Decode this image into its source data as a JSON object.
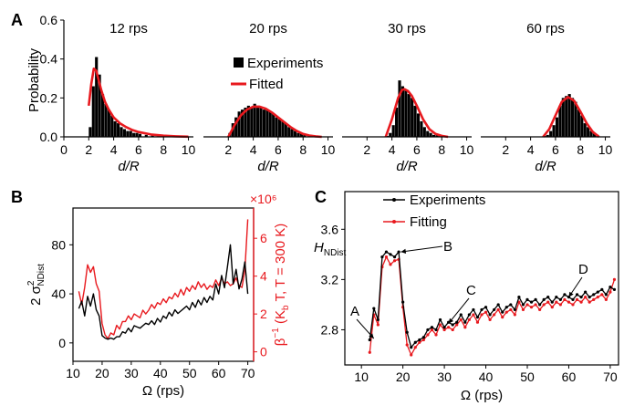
{
  "panel_labels": [
    "A",
    "B",
    "C"
  ],
  "colors": {
    "axis": "#000000",
    "experiment": "#000000",
    "fit": "#e8191e",
    "red_axis": "#e8191e"
  },
  "chart_data": [
    {
      "panel": "A",
      "type": "bar",
      "ylabel": "Probability",
      "ylim": [
        0,
        0.6
      ],
      "yticks": [
        "0.0",
        "0.2",
        "0.4",
        "0.6"
      ],
      "xlabel": "d/R",
      "xticks": [
        "0",
        "2",
        "4",
        "6",
        "8",
        "10"
      ],
      "xticks_other": [
        "2",
        "4",
        "6",
        "8",
        "10"
      ],
      "legend_labels": [
        "Experiments",
        "Fitted"
      ],
      "subplots": [
        {
          "title": "12 rps",
          "bins": [
            2.0,
            2.25,
            2.5,
            2.75,
            3.0,
            3.25,
            3.5,
            3.75,
            4.0,
            4.25,
            4.5,
            4.75,
            5.0,
            5.25,
            5.5,
            5.75,
            6.0,
            6.5,
            7.0,
            7.5,
            8.0,
            8.5,
            9.0
          ],
          "values": [
            0.05,
            0.26,
            0.41,
            0.32,
            0.22,
            0.17,
            0.14,
            0.11,
            0.08,
            0.07,
            0.05,
            0.04,
            0.03,
            0.03,
            0.02,
            0.02,
            0.015,
            0.01,
            0.01,
            0.005,
            0.005,
            0.005,
            0.003
          ],
          "fit_x": [
            2.0,
            2.2,
            2.4,
            2.6,
            2.8,
            3.0,
            3.3,
            3.6,
            4.0,
            4.5,
            5.0,
            5.5,
            6.0,
            7.0,
            8.0,
            9.0,
            10.0
          ],
          "fit_y": [
            0.16,
            0.27,
            0.35,
            0.34,
            0.29,
            0.24,
            0.18,
            0.14,
            0.1,
            0.07,
            0.05,
            0.035,
            0.025,
            0.012,
            0.006,
            0.003,
            0.001
          ]
        },
        {
          "title": "20 rps",
          "bins": [
            2.0,
            2.25,
            2.5,
            2.75,
            3.0,
            3.25,
            3.5,
            3.75,
            4.0,
            4.25,
            4.5,
            4.75,
            5.0,
            5.25,
            5.5,
            5.75,
            6.0,
            6.25,
            6.5,
            6.75,
            7.0,
            7.25,
            7.5,
            7.75,
            8.0,
            8.5,
            9.0
          ],
          "values": [
            0.02,
            0.07,
            0.1,
            0.13,
            0.14,
            0.15,
            0.16,
            0.15,
            0.17,
            0.16,
            0.15,
            0.14,
            0.14,
            0.13,
            0.12,
            0.1,
            0.09,
            0.08,
            0.07,
            0.05,
            0.04,
            0.03,
            0.02,
            0.02,
            0.01,
            0.01,
            0.005
          ],
          "fit_x": [
            2.0,
            2.5,
            3.0,
            3.5,
            4.0,
            4.5,
            5.0,
            5.5,
            6.0,
            6.5,
            7.0,
            7.5,
            8.0,
            8.5,
            9.0,
            9.5
          ],
          "fit_y": [
            0.0,
            0.06,
            0.11,
            0.14,
            0.155,
            0.155,
            0.145,
            0.125,
            0.1,
            0.075,
            0.05,
            0.03,
            0.015,
            0.007,
            0.003,
            0.0
          ]
        },
        {
          "title": "30 rps",
          "bins": [
            3.5,
            3.75,
            4.0,
            4.25,
            4.5,
            4.75,
            5.0,
            5.25,
            5.5,
            5.75,
            6.0,
            6.25,
            6.5,
            6.75,
            7.0,
            7.25,
            7.5,
            7.75,
            8.0
          ],
          "values": [
            0.005,
            0.02,
            0.06,
            0.15,
            0.29,
            0.26,
            0.24,
            0.22,
            0.2,
            0.16,
            0.12,
            0.08,
            0.05,
            0.03,
            0.02,
            0.01,
            0.008,
            0.005,
            0.003
          ],
          "fit_x": [
            3.5,
            4.0,
            4.5,
            4.8,
            5.0,
            5.3,
            5.6,
            6.0,
            6.5,
            7.0,
            7.5,
            8.0,
            8.5
          ],
          "fit_y": [
            0.0,
            0.09,
            0.2,
            0.24,
            0.245,
            0.235,
            0.21,
            0.16,
            0.09,
            0.04,
            0.015,
            0.005,
            0.0
          ]
        },
        {
          "title": "60 rps",
          "bins": [
            5.0,
            5.25,
            5.5,
            5.75,
            6.0,
            6.25,
            6.5,
            6.75,
            7.0,
            7.25,
            7.5,
            7.75,
            8.0,
            8.25,
            8.5,
            8.75,
            9.0,
            9.25
          ],
          "values": [
            0.005,
            0.01,
            0.03,
            0.06,
            0.1,
            0.16,
            0.2,
            0.21,
            0.22,
            0.2,
            0.18,
            0.14,
            0.11,
            0.07,
            0.05,
            0.03,
            0.02,
            0.01
          ],
          "fit_x": [
            5.0,
            5.5,
            6.0,
            6.5,
            7.0,
            7.5,
            8.0,
            8.5,
            9.0,
            9.5
          ],
          "fit_y": [
            0.0,
            0.04,
            0.11,
            0.18,
            0.205,
            0.185,
            0.13,
            0.07,
            0.025,
            0.0
          ]
        }
      ]
    },
    {
      "panel": "B",
      "type": "line",
      "xlabel": "Ω (rps)",
      "xlim": [
        10,
        72
      ],
      "xticks": [
        "10",
        "20",
        "30",
        "40",
        "50",
        "60",
        "70"
      ],
      "ylabel_left": "2 σ",
      "ylabel_left_sup": "2",
      "ylabel_left_sub": "NDist",
      "ylim_left": [
        -15,
        110
      ],
      "yticks_left": [
        "0",
        "40",
        "80"
      ],
      "ylabel_right": "β⁻¹ (K_b T, T = 300 K)",
      "ylabel_right_main": "β",
      "ylabel_right_sup": "−1",
      "ylabel_right_paren": " (K",
      "ylabel_right_sub": "b",
      "ylabel_right_rest": " T, T = 300 K)",
      "right_scale_label": "×10⁶",
      "ylim_right": [
        -0.5,
        7.6
      ],
      "yticks_right": [
        "0",
        "2",
        "4",
        "6"
      ],
      "series": [
        {
          "x": [
            12,
            13,
            14,
            15,
            16,
            17,
            18,
            19,
            20,
            21,
            22,
            23,
            24,
            25,
            26,
            27,
            28,
            29,
            30,
            31,
            32,
            33,
            34,
            35,
            36,
            37,
            38,
            39,
            40,
            41,
            42,
            43,
            44,
            45,
            46,
            47,
            48,
            49,
            50,
            51,
            52,
            53,
            54,
            55,
            56,
            57,
            58,
            59,
            60,
            61,
            62,
            63,
            64,
            65,
            66,
            67,
            68,
            69,
            70
          ],
          "y": [
            28,
            34,
            22,
            38,
            30,
            40,
            27,
            22,
            6,
            4,
            3,
            4,
            3,
            5,
            5,
            9,
            8,
            12,
            9,
            14,
            13,
            12,
            14,
            16,
            15,
            18,
            15,
            20,
            17,
            22,
            20,
            25,
            22,
            27,
            24,
            26,
            28,
            30,
            27,
            33,
            29,
            35,
            31,
            37,
            33,
            38,
            35,
            48,
            40,
            55,
            45,
            62,
            80,
            48,
            60,
            44,
            52,
            66,
            40
          ]
        },
        {
          "axis": "right",
          "x": [
            12,
            13,
            14,
            15,
            16,
            17,
            18,
            19,
            20,
            21,
            22,
            23,
            24,
            25,
            26,
            27,
            28,
            29,
            30,
            31,
            32,
            33,
            34,
            35,
            36,
            37,
            38,
            39,
            40,
            41,
            42,
            43,
            44,
            45,
            46,
            47,
            48,
            49,
            50,
            51,
            52,
            53,
            54,
            55,
            56,
            57,
            58,
            59,
            60,
            61,
            62,
            63,
            64,
            65,
            66,
            67,
            68,
            69,
            70
          ],
          "y": [
            3.2,
            2.5,
            3.4,
            4.6,
            4.2,
            4.5,
            3.6,
            3.2,
            1.5,
            0.9,
            0.7,
            1.0,
            0.9,
            1.4,
            1.2,
            1.6,
            1.6,
            1.9,
            1.7,
            2.0,
            1.9,
            1.8,
            2.2,
            2.0,
            2.2,
            2.5,
            2.3,
            2.6,
            2.5,
            2.8,
            2.6,
            2.9,
            2.8,
            3.1,
            2.9,
            3.3,
            3.0,
            3.4,
            3.2,
            3.5,
            3.3,
            3.7,
            3.4,
            3.6,
            3.3,
            3.5,
            3.4,
            3.8,
            3.5,
            3.9,
            3.6,
            3.7,
            3.5,
            3.6,
            3.9,
            3.5,
            3.4,
            4.3,
            7.0
          ]
        }
      ]
    },
    {
      "panel": "C",
      "type": "line",
      "ylabel": "H",
      "ylabel_sub": "NDist",
      "xlabel": "Ω (rps)",
      "xlim": [
        6,
        72
      ],
      "xticks": [
        "10",
        "20",
        "30",
        "40",
        "50",
        "60",
        "70"
      ],
      "ylim": [
        2.52,
        3.9
      ],
      "yticks": [
        "2.8",
        "3.2",
        "3.6"
      ],
      "legend_labels": [
        "Experiments",
        "Fitting"
      ],
      "annotations": [
        "A",
        "B",
        "C",
        "D"
      ],
      "series": [
        {
          "x": [
            12,
            13,
            14,
            15,
            16,
            17,
            18,
            19,
            20,
            21,
            22,
            23,
            24,
            25,
            26,
            27,
            28,
            29,
            30,
            31,
            32,
            33,
            34,
            35,
            36,
            37,
            38,
            39,
            40,
            41,
            42,
            43,
            44,
            45,
            46,
            47,
            48,
            49,
            50,
            51,
            52,
            53,
            54,
            55,
            56,
            57,
            58,
            59,
            60,
            61,
            62,
            63,
            64,
            65,
            66,
            67,
            68,
            69,
            70,
            71
          ],
          "y": [
            2.72,
            2.97,
            2.88,
            3.38,
            3.42,
            3.4,
            3.38,
            3.42,
            3.02,
            2.78,
            2.66,
            2.7,
            2.72,
            2.74,
            2.8,
            2.82,
            2.8,
            2.88,
            2.82,
            2.86,
            2.84,
            2.86,
            2.92,
            2.86,
            2.92,
            2.96,
            2.9,
            2.96,
            2.98,
            2.92,
            2.96,
            3.0,
            2.94,
            2.98,
            3.0,
            2.96,
            3.06,
            3.0,
            3.04,
            3.02,
            3.04,
            3.0,
            3.04,
            3.06,
            3.02,
            3.06,
            3.04,
            3.08,
            3.06,
            3.04,
            3.08,
            3.06,
            3.1,
            3.06,
            3.08,
            3.1,
            3.12,
            3.08,
            3.14,
            3.12
          ]
        },
        {
          "x": [
            12,
            13,
            14,
            15,
            16,
            17,
            18,
            19,
            20,
            21,
            22,
            23,
            24,
            25,
            26,
            27,
            28,
            29,
            30,
            31,
            32,
            33,
            34,
            35,
            36,
            37,
            38,
            39,
            40,
            41,
            42,
            43,
            44,
            45,
            46,
            47,
            48,
            49,
            50,
            51,
            52,
            53,
            54,
            55,
            56,
            57,
            58,
            59,
            60,
            61,
            62,
            63,
            64,
            65,
            66,
            67,
            68,
            69,
            70,
            71
          ],
          "y": [
            2.62,
            2.92,
            2.84,
            3.3,
            3.38,
            3.32,
            3.35,
            3.36,
            2.98,
            2.68,
            2.6,
            2.66,
            2.7,
            2.72,
            2.76,
            2.8,
            2.76,
            2.84,
            2.8,
            2.82,
            2.8,
            2.84,
            2.88,
            2.82,
            2.88,
            2.92,
            2.86,
            2.92,
            2.94,
            2.88,
            2.92,
            2.96,
            2.9,
            2.94,
            2.96,
            2.92,
            3.02,
            2.96,
            3.0,
            2.98,
            3.0,
            2.96,
            3.0,
            3.02,
            2.98,
            3.02,
            3.0,
            3.04,
            3.02,
            3.0,
            3.04,
            3.02,
            3.06,
            3.02,
            3.04,
            3.06,
            3.08,
            3.04,
            3.1,
            3.2
          ]
        }
      ]
    }
  ]
}
